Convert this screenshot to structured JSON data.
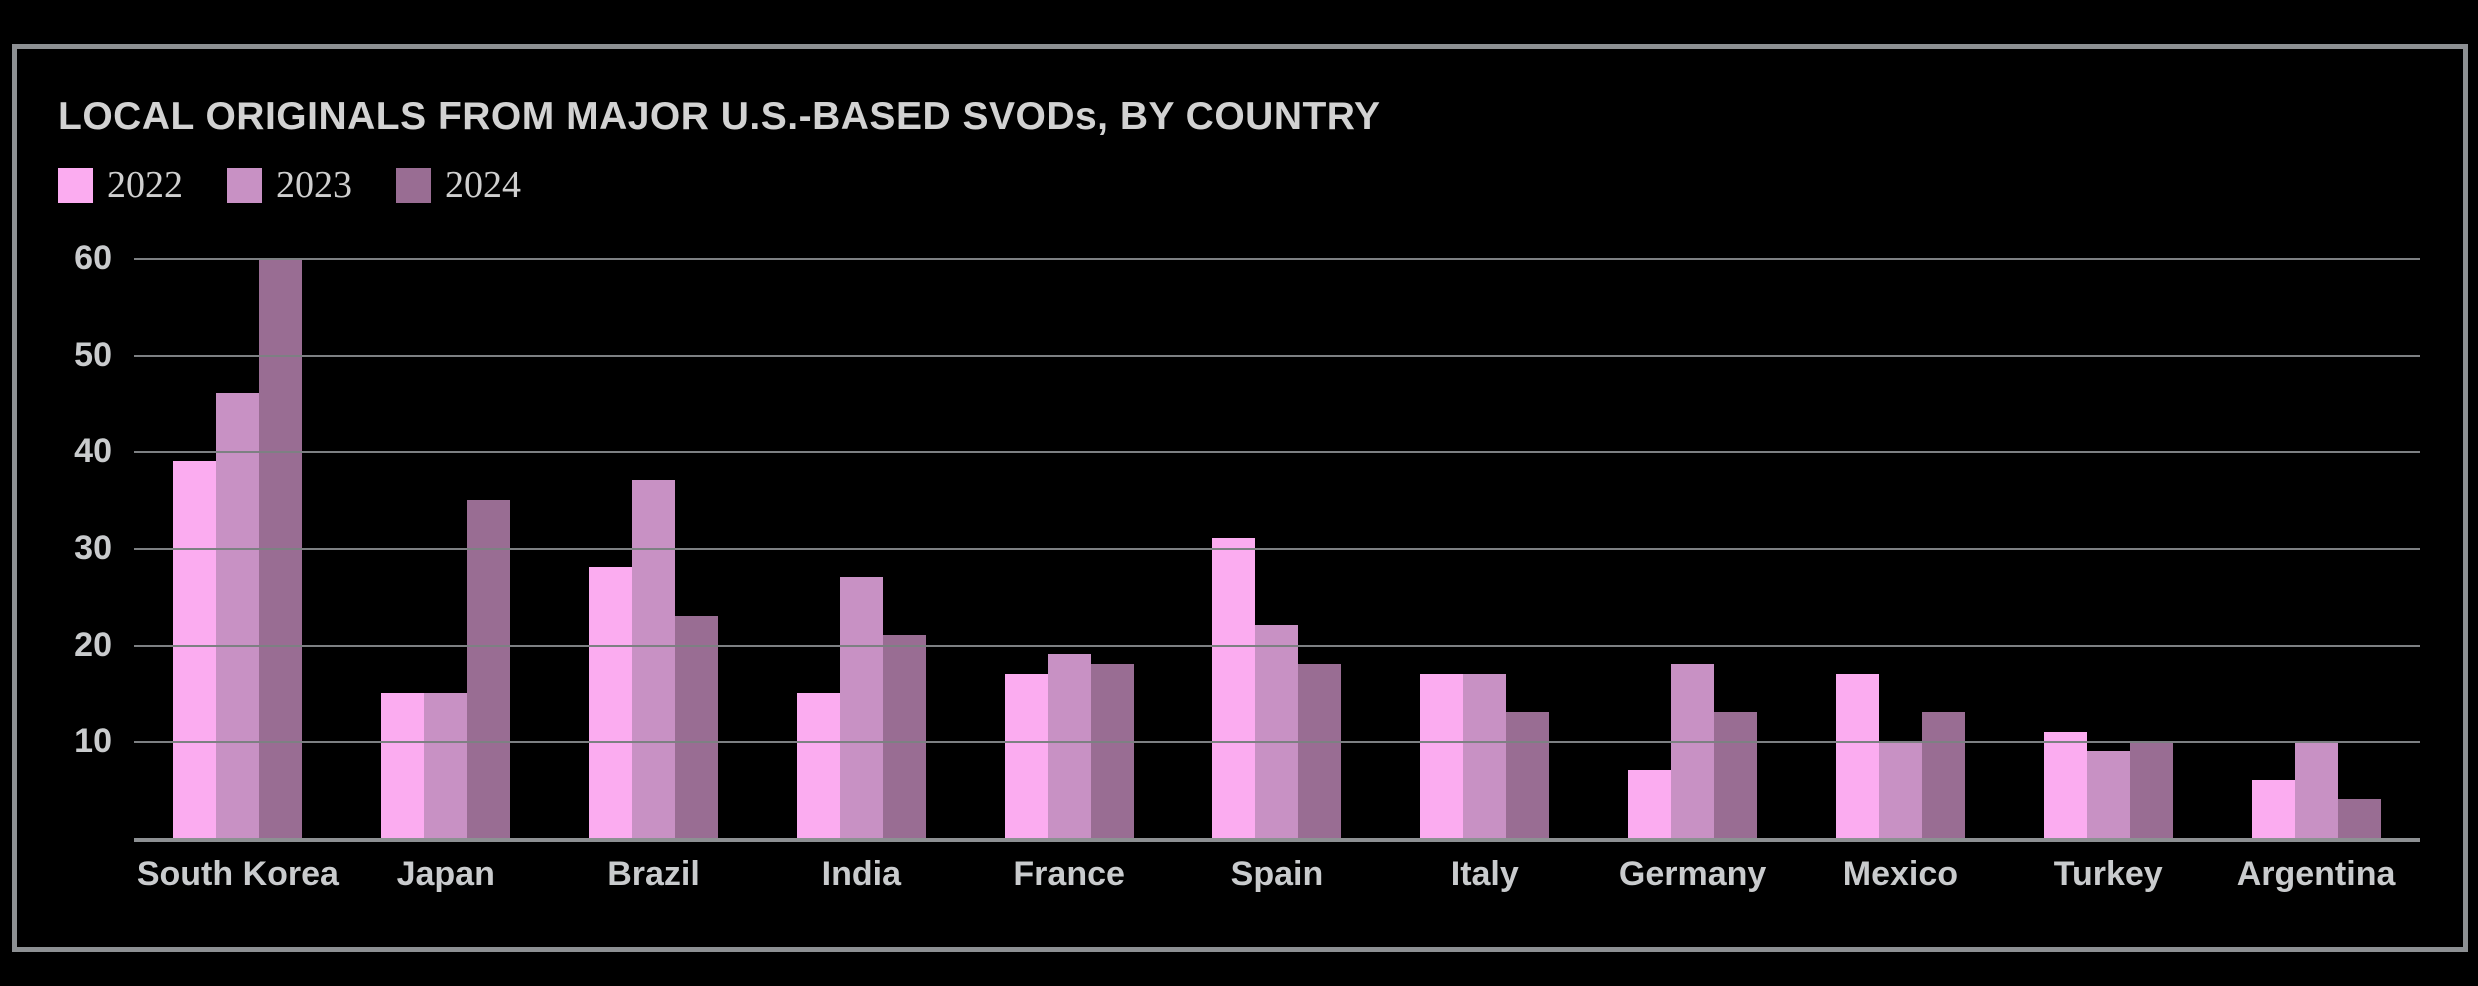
{
  "chart_data": {
    "type": "bar",
    "title": "LOCAL ORIGINALS FROM MAJOR U.S.-BASED SVODs, BY COUNTRY",
    "categories": [
      "South Korea",
      "Japan",
      "Brazil",
      "India",
      "France",
      "Spain",
      "Italy",
      "Germany",
      "Mexico",
      "Turkey",
      "Argentina"
    ],
    "series": [
      {
        "name": "2022",
        "color": "#fbacf0",
        "values": [
          39,
          15,
          28,
          15,
          17,
          31,
          17,
          7,
          17,
          11,
          6
        ]
      },
      {
        "name": "2023",
        "color": "#c891c4",
        "values": [
          46,
          15,
          37,
          27,
          19,
          22,
          17,
          18,
          10,
          9,
          10
        ]
      },
      {
        "name": "2024",
        "color": "#996d93",
        "values": [
          60,
          35,
          23,
          21,
          18,
          18,
          13,
          13,
          13,
          10,
          4
        ]
      }
    ],
    "xlabel": "",
    "ylabel": "",
    "ylim": [
      0,
      60
    ],
    "yticks": [
      60,
      50,
      40,
      30,
      20,
      10
    ],
    "grid": true,
    "legend_position": "top-left"
  },
  "colors": {
    "background": "#000000",
    "frame_border": "#8d9093",
    "gridline": "#7d8083",
    "axis_line": "#8d9093",
    "title_text": "#d2d2d2",
    "label_text": "#c9cbcd",
    "legend_text": "#cfcfcf"
  }
}
